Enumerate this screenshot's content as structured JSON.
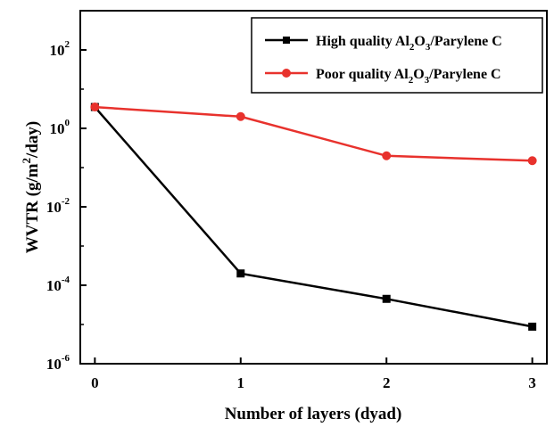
{
  "chart_data": {
    "type": "line",
    "xlabel": "Number of layers (dyad)",
    "ylabel": {
      "pre": "WVTR (g/m",
      "sup": "2",
      "post": "/day)"
    },
    "x": [
      0,
      1,
      2,
      3
    ],
    "xlim": [
      -0.1,
      3.1
    ],
    "ylim_log10": [
      -6,
      3
    ],
    "y_scale": "log",
    "y_ticks": [
      {
        "base": "10",
        "exp": "-6",
        "log": -6
      },
      {
        "base": "10",
        "exp": "-4",
        "log": -4
      },
      {
        "base": "10",
        "exp": "-2",
        "log": -2
      },
      {
        "base": "10",
        "exp": "0",
        "log": 0
      },
      {
        "base": "10",
        "exp": "2",
        "log": 2
      }
    ],
    "x_ticks": [
      {
        "label": "0",
        "value": 0
      },
      {
        "label": "1",
        "value": 1
      },
      {
        "label": "2",
        "value": 2
      },
      {
        "label": "3",
        "value": 3
      }
    ],
    "legend_position": "top-right",
    "series": [
      {
        "name": {
          "a": "High quality Al",
          "b": "2",
          "c": "O",
          "d": "3",
          "e": "/Parylene C"
        },
        "color": "#000000",
        "marker": "square",
        "values": [
          3.5,
          0.0002,
          4.5e-05,
          8.8e-06
        ]
      },
      {
        "name": {
          "a": "Poor quality Al",
          "b": "2",
          "c": "O",
          "d": "3",
          "e": "/Parylene C"
        },
        "color": "#e8322d",
        "marker": "circle",
        "values": [
          3.5,
          2.0,
          0.2,
          0.15
        ]
      }
    ]
  }
}
